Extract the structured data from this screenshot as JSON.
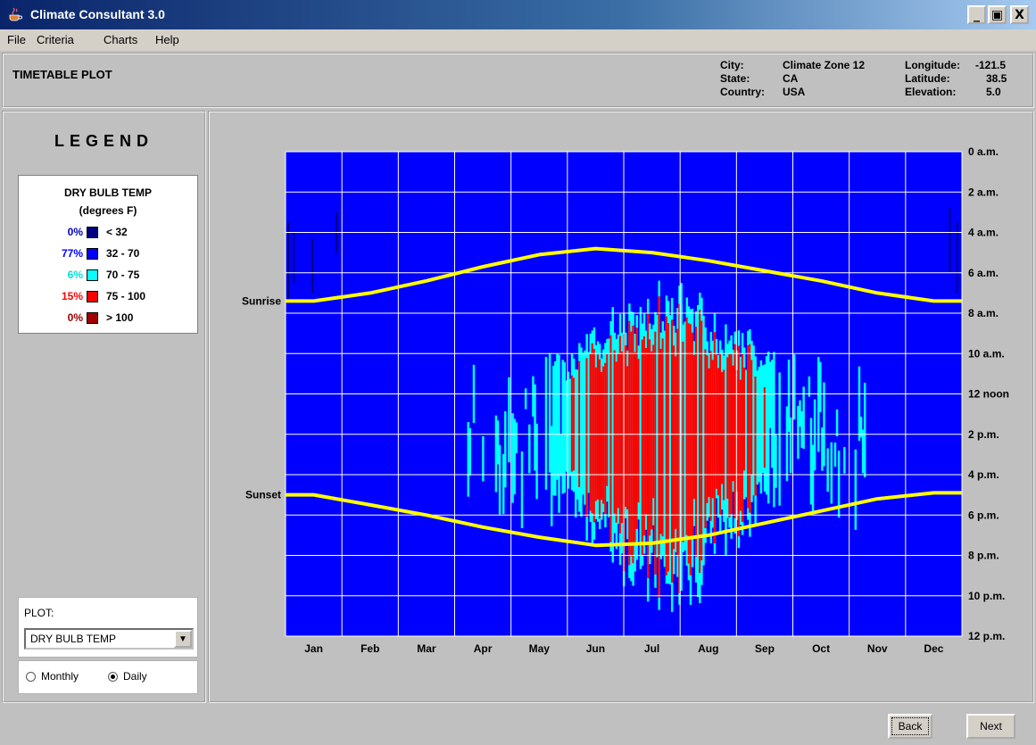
{
  "window": {
    "title": "Climate Consultant 3.0",
    "minimize": "_",
    "maximize": "▣",
    "close": "X"
  },
  "menu": [
    "File",
    "Criteria",
    "Charts",
    "Help"
  ],
  "header": {
    "plot_title": "TIMETABLE PLOT",
    "city_label": "City:",
    "city_value": "Climate Zone 12",
    "state_label": "State:",
    "state_value": "CA",
    "country_label": "Country:",
    "country_value": "USA",
    "longitude_label": "Longitude:",
    "longitude_value": "-121.5",
    "latitude_label": "Latitude:",
    "latitude_value": "38.5",
    "elevation_label": "Elevation:",
    "elevation_value": "5.0"
  },
  "legend": {
    "heading": "LEGEND",
    "variable": "DRY BULB TEMP",
    "units": "(degrees F)",
    "rows": [
      {
        "pct": "0%",
        "range": "< 32",
        "color": "#000080",
        "text_color": "#0000c0"
      },
      {
        "pct": "77%",
        "range": "32  -  70",
        "color": "#0000ff",
        "text_color": "#0000ff"
      },
      {
        "pct": "6%",
        "range": "70  -  75",
        "color": "#00ffff",
        "text_color": "#00e0e0"
      },
      {
        "pct": "15%",
        "range": "75  -  100",
        "color": "#ff0000",
        "text_color": "#ff0000"
      },
      {
        "pct": "0%",
        "range": "> 100",
        "color": "#a00000",
        "text_color": "#a00000"
      }
    ]
  },
  "plot_control": {
    "label": "PLOT:",
    "selected": "DRY BULB TEMP",
    "monthly_label": "Monthly",
    "daily_label": "Daily",
    "selected_mode": "daily"
  },
  "buttons": {
    "back": "Back",
    "next": "Next"
  },
  "chart_data": {
    "type": "heatmap",
    "months": [
      "Jan",
      "Feb",
      "Mar",
      "Apr",
      "May",
      "Jun",
      "Jul",
      "Aug",
      "Sep",
      "Oct",
      "Nov",
      "Dec"
    ],
    "hour_labels": [
      "0 a.m.",
      "2 a.m.",
      "4 a.m.",
      "6 a.m.",
      "8 a.m.",
      "10 a.m.",
      "12 noon",
      "2 p.m.",
      "4 p.m.",
      "6 p.m.",
      "8 p.m.",
      "10 p.m.",
      "12 p.m."
    ],
    "sunrise_label": "Sunrise",
    "sunset_label": "Sunset",
    "sunrise_hours": [
      7.4,
      7.0,
      6.4,
      5.7,
      5.1,
      4.8,
      5.0,
      5.4,
      5.9,
      6.4,
      7.0,
      7.4
    ],
    "sunset_hours": [
      17.0,
      17.5,
      18.0,
      18.6,
      19.1,
      19.5,
      19.4,
      19.0,
      18.4,
      17.8,
      17.2,
      16.9
    ],
    "colors": {
      "background": "#0000ff",
      "warm": "#ff0000",
      "mild": "#00ffff",
      "cold": "#000080",
      "sun": "#ffff00"
    }
  }
}
